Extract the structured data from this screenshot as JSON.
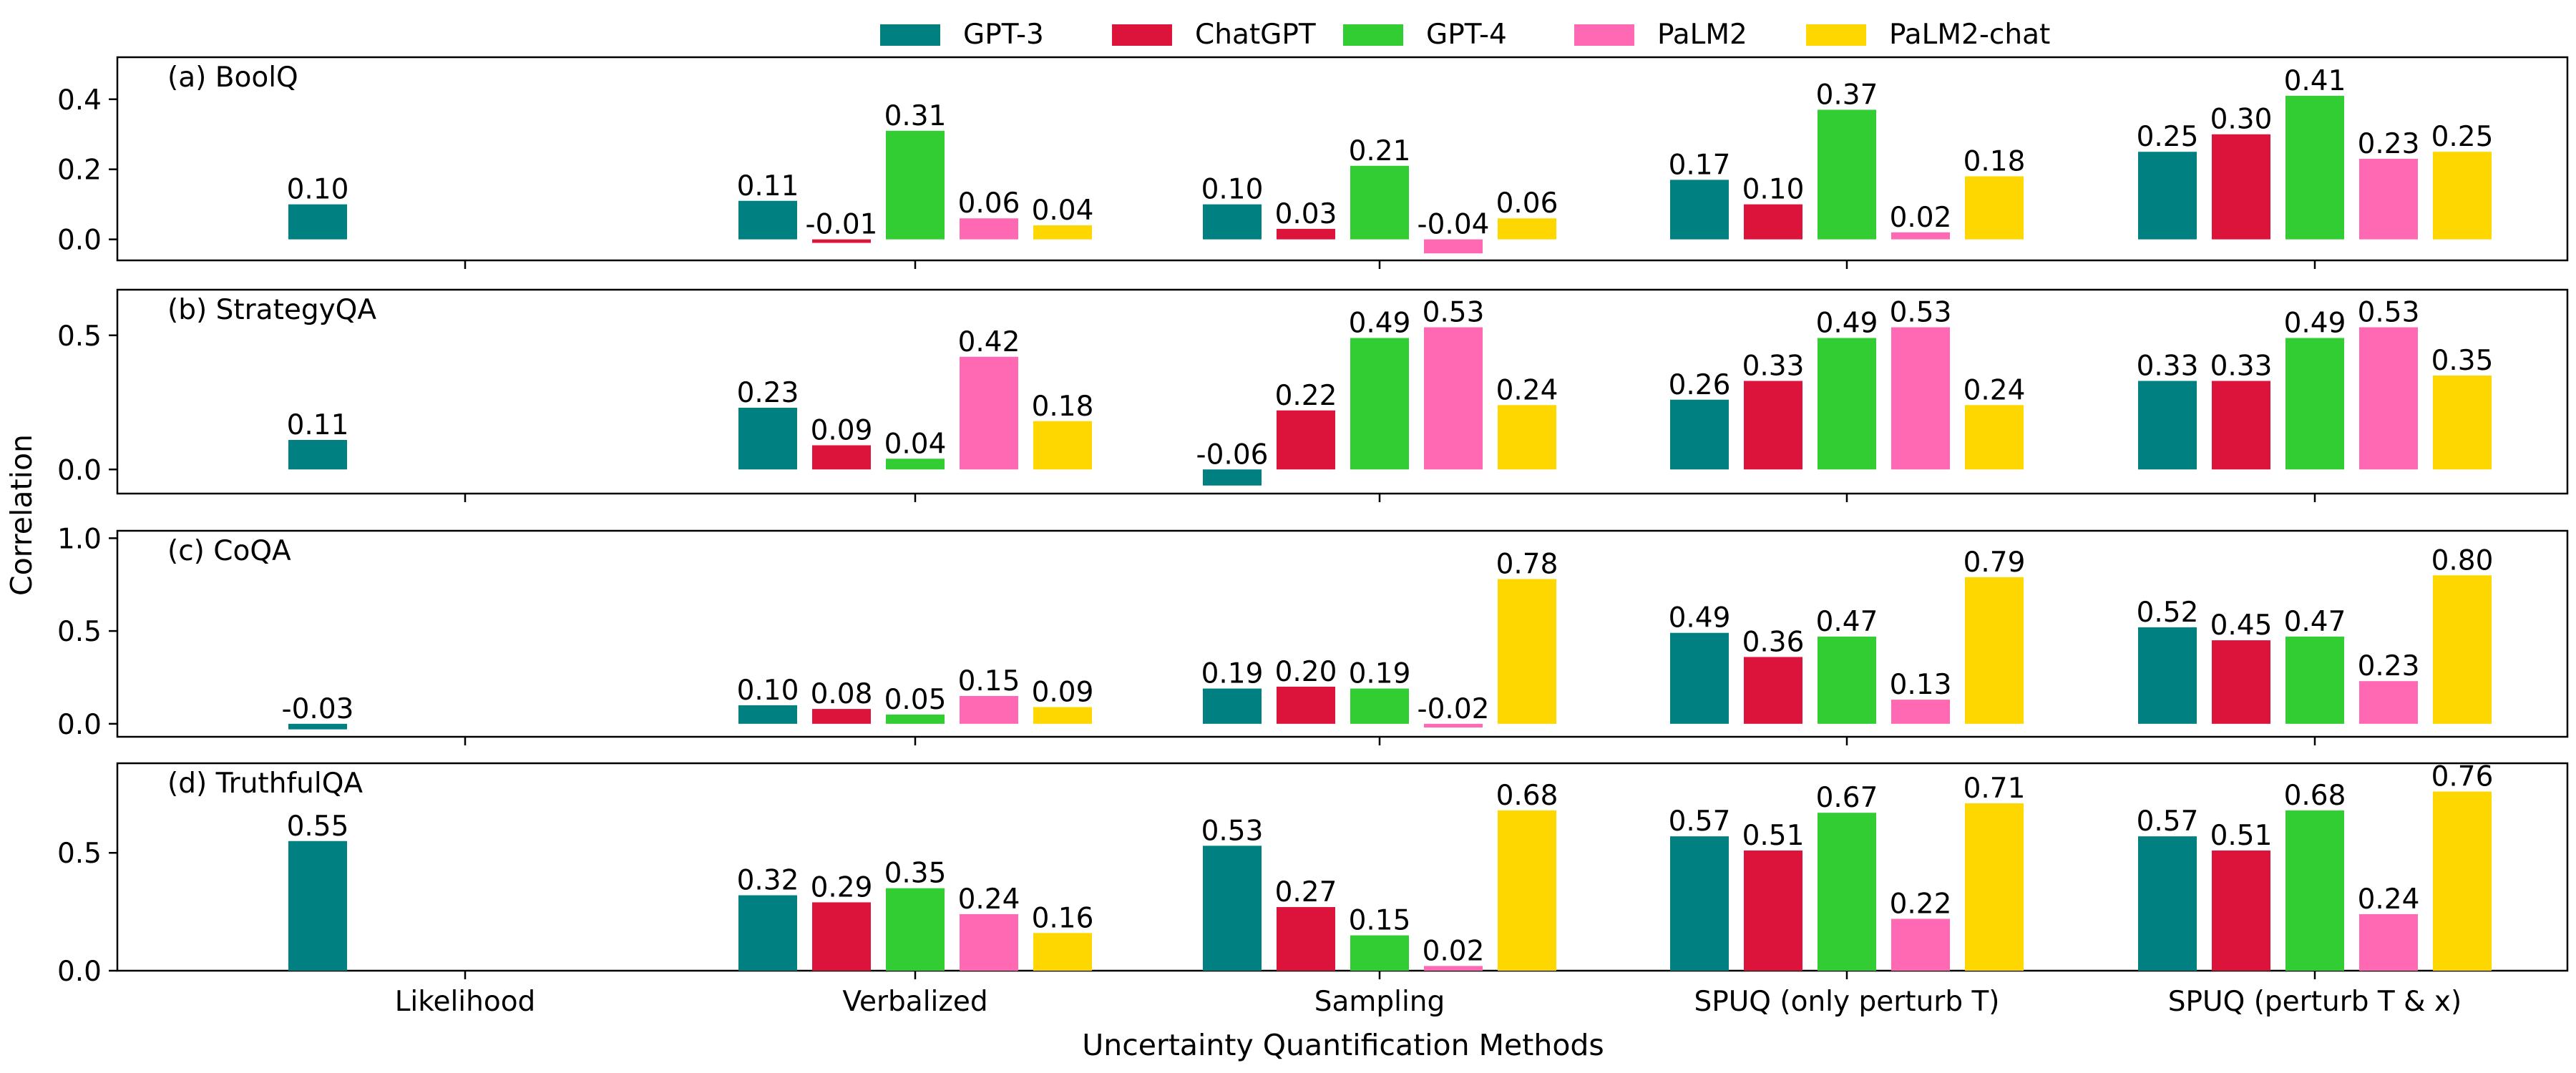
{
  "chart_data": {
    "type": "bar",
    "xlabel": "Uncertainty Quantification Methods",
    "ylabel": "Correlation",
    "categories": [
      "Likelihood",
      "Verbalized",
      "Sampling",
      "SPUQ (only perturb T)",
      "SPUQ (perturb T & x)"
    ],
    "legend": [
      {
        "name": "GPT-3",
        "color": "#008080"
      },
      {
        "name": "ChatGPT",
        "color": "#DC143C"
      },
      {
        "name": "GPT-4",
        "color": "#32CD32"
      },
      {
        "name": "PaLM2",
        "color": "#FF69B4"
      },
      {
        "name": "PaLM2-chat",
        "color": "#FFD700"
      }
    ],
    "panels": [
      {
        "title": "(a) BoolQ",
        "ylim": [
          -0.06,
          0.52
        ],
        "yticks": [
          0.0,
          0.2,
          0.4
        ],
        "ytick_labels": [
          "0.0",
          "0.2",
          "0.4"
        ],
        "series": [
          {
            "name": "GPT-3",
            "values": [
              0.1,
              0.11,
              0.1,
              0.17,
              0.25
            ],
            "labels": [
              "0.10",
              "0.11",
              "0.10",
              "0.17",
              "0.25"
            ]
          },
          {
            "name": "ChatGPT",
            "values": [
              null,
              -0.01,
              0.03,
              0.1,
              0.3
            ],
            "labels": [
              "",
              "-0.01",
              "0.03",
              "0.10",
              "0.30"
            ]
          },
          {
            "name": "GPT-4",
            "values": [
              null,
              0.31,
              0.21,
              0.37,
              0.41
            ],
            "labels": [
              "",
              "0.31",
              "0.21",
              "0.37",
              "0.41"
            ]
          },
          {
            "name": "PaLM2",
            "values": [
              null,
              0.06,
              -0.04,
              0.02,
              0.23
            ],
            "labels": [
              "",
              "0.06",
              "-0.04",
              "0.02",
              "0.23"
            ]
          },
          {
            "name": "PaLM2-chat",
            "values": [
              null,
              0.04,
              0.06,
              0.18,
              0.25
            ],
            "labels": [
              "",
              "0.04",
              "0.06",
              "0.18",
              "0.25"
            ]
          }
        ]
      },
      {
        "title": "(b) StrategyQA",
        "ylim": [
          -0.09,
          0.67
        ],
        "yticks": [
          0.0,
          0.5
        ],
        "ytick_labels": [
          "0.0",
          "0.5"
        ],
        "series": [
          {
            "name": "GPT-3",
            "values": [
              0.11,
              0.23,
              -0.06,
              0.26,
              0.33
            ],
            "labels": [
              "0.11",
              "0.23",
              "-0.06",
              "0.26",
              "0.33"
            ]
          },
          {
            "name": "ChatGPT",
            "values": [
              null,
              0.09,
              0.22,
              0.33,
              0.33
            ],
            "labels": [
              "",
              "0.09",
              "0.22",
              "0.33",
              "0.33"
            ]
          },
          {
            "name": "GPT-4",
            "values": [
              null,
              0.04,
              0.49,
              0.49,
              0.49
            ],
            "labels": [
              "",
              "0.04",
              "0.49",
              "0.49",
              "0.49"
            ]
          },
          {
            "name": "PaLM2",
            "values": [
              null,
              0.42,
              0.53,
              0.53,
              0.53
            ],
            "labels": [
              "",
              "0.42",
              "0.53",
              "0.53",
              "0.53"
            ]
          },
          {
            "name": "PaLM2-chat",
            "values": [
              null,
              0.18,
              0.24,
              0.24,
              0.35
            ],
            "labels": [
              "",
              "0.18",
              "0.24",
              "0.24",
              "0.35"
            ]
          }
        ]
      },
      {
        "title": "(c) CoQA",
        "ylim": [
          -0.07,
          1.04
        ],
        "yticks": [
          0.0,
          0.5,
          1.0
        ],
        "ytick_labels": [
          "0.0",
          "0.5",
          "1.0"
        ],
        "series": [
          {
            "name": "GPT-3",
            "values": [
              -0.03,
              0.1,
              0.19,
              0.49,
              0.52
            ],
            "labels": [
              "-0.03",
              "0.10",
              "0.19",
              "0.49",
              "0.52"
            ]
          },
          {
            "name": "ChatGPT",
            "values": [
              null,
              0.08,
              0.2,
              0.36,
              0.45
            ],
            "labels": [
              "",
              "0.08",
              "0.20",
              "0.36",
              "0.45"
            ]
          },
          {
            "name": "GPT-4",
            "values": [
              null,
              0.05,
              0.19,
              0.47,
              0.47
            ],
            "labels": [
              "",
              "0.05",
              "0.19",
              "0.47",
              "0.47"
            ]
          },
          {
            "name": "PaLM2",
            "values": [
              null,
              0.15,
              -0.02,
              0.13,
              0.23
            ],
            "labels": [
              "",
              "0.15",
              "-0.02",
              "0.13",
              "0.23"
            ]
          },
          {
            "name": "PaLM2-chat",
            "values": [
              null,
              0.09,
              0.78,
              0.79,
              0.8
            ],
            "labels": [
              "",
              "0.09",
              "0.78",
              "0.79",
              "0.80"
            ]
          }
        ]
      },
      {
        "title": "(d) TruthfulQA",
        "ylim": [
          0.0,
          0.88
        ],
        "yticks": [
          0.0,
          0.5
        ],
        "ytick_labels": [
          "0.0",
          "0.5"
        ],
        "series": [
          {
            "name": "GPT-3",
            "values": [
              0.55,
              0.32,
              0.53,
              0.57,
              0.57
            ],
            "labels": [
              "0.55",
              "0.32",
              "0.53",
              "0.57",
              "0.57"
            ]
          },
          {
            "name": "ChatGPT",
            "values": [
              null,
              0.29,
              0.27,
              0.51,
              0.51
            ],
            "labels": [
              "",
              "0.29",
              "0.27",
              "0.51",
              "0.51"
            ]
          },
          {
            "name": "GPT-4",
            "values": [
              null,
              0.35,
              0.15,
              0.67,
              0.68
            ],
            "labels": [
              "",
              "0.35",
              "0.15",
              "0.67",
              "0.68"
            ]
          },
          {
            "name": "PaLM2",
            "values": [
              null,
              0.24,
              0.02,
              0.22,
              0.24
            ],
            "labels": [
              "",
              "0.24",
              "0.02",
              "0.22",
              "0.24"
            ]
          },
          {
            "name": "PaLM2-chat",
            "values": [
              null,
              0.16,
              0.68,
              0.71,
              0.76
            ],
            "labels": [
              "",
              "0.16",
              "0.68",
              "0.71",
              "0.76"
            ]
          }
        ]
      }
    ]
  }
}
